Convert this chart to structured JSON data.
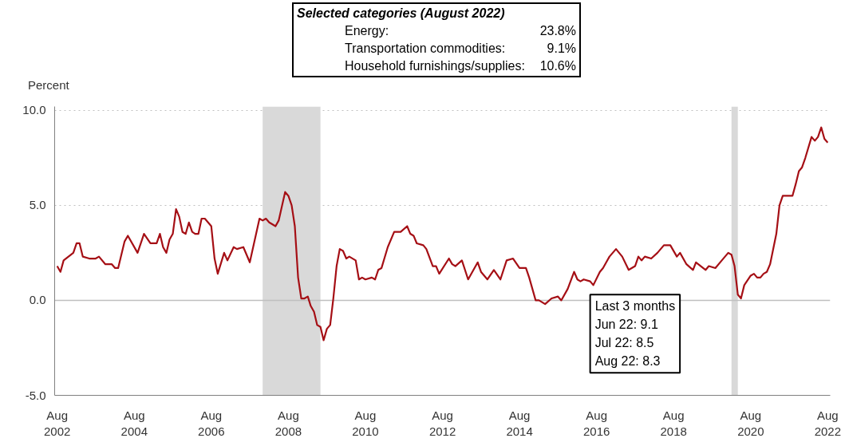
{
  "chart_data": {
    "type": "line",
    "ylabel": "Percent",
    "x": [
      "2002-08",
      "2002-09",
      "2002-10",
      "2003-01",
      "2003-02",
      "2003-03",
      "2003-04",
      "2003-06",
      "2003-08",
      "2003-09",
      "2003-11",
      "2004-01",
      "2004-02",
      "2004-03",
      "2004-05",
      "2004-06",
      "2004-09",
      "2004-11",
      "2005-01",
      "2005-03",
      "2005-04",
      "2005-05",
      "2005-06",
      "2005-07",
      "2005-08",
      "2005-09",
      "2005-10",
      "2005-11",
      "2005-12",
      "2006-01",
      "2006-02",
      "2006-03",
      "2006-04",
      "2006-05",
      "2006-06",
      "2006-08",
      "2006-09",
      "2006-10",
      "2006-12",
      "2007-01",
      "2007-03",
      "2007-04",
      "2007-06",
      "2007-08",
      "2007-11",
      "2007-12",
      "2008-01",
      "2008-02",
      "2008-04",
      "2008-05",
      "2008-07",
      "2008-08",
      "2008-09",
      "2008-10",
      "2008-11",
      "2008-12",
      "2009-01",
      "2009-02",
      "2009-03",
      "2009-04",
      "2009-05",
      "2009-06",
      "2009-07",
      "2009-08",
      "2009-09",
      "2009-10",
      "2009-11",
      "2009-12",
      "2010-01",
      "2010-02",
      "2010-03",
      "2010-05",
      "2010-06",
      "2010-07",
      "2010-08",
      "2010-10",
      "2010-11",
      "2010-12",
      "2011-01",
      "2011-03",
      "2011-05",
      "2011-07",
      "2011-09",
      "2011-10",
      "2011-11",
      "2011-12",
      "2012-02",
      "2012-03",
      "2012-05",
      "2012-06",
      "2012-07",
      "2012-10",
      "2012-11",
      "2012-12",
      "2013-02",
      "2013-04",
      "2013-07",
      "2013-08",
      "2013-10",
      "2013-12",
      "2014-02",
      "2014-04",
      "2014-06",
      "2014-08",
      "2014-10",
      "2014-11",
      "2015-01",
      "2015-02",
      "2015-04",
      "2015-06",
      "2015-08",
      "2015-09",
      "2015-11",
      "2016-01",
      "2016-02",
      "2016-03",
      "2016-04",
      "2016-06",
      "2016-07",
      "2016-09",
      "2016-10",
      "2016-12",
      "2017-02",
      "2017-04",
      "2017-06",
      "2017-08",
      "2017-09",
      "2017-10",
      "2017-11",
      "2018-01",
      "2018-03",
      "2018-05",
      "2018-07",
      "2018-09",
      "2018-10",
      "2018-12",
      "2019-02",
      "2019-03",
      "2019-06",
      "2019-07",
      "2019-09",
      "2019-11",
      "2020-01",
      "2020-02",
      "2020-03",
      "2020-04",
      "2020-05",
      "2020-06",
      "2020-08",
      "2020-09",
      "2020-10",
      "2020-11",
      "2020-12",
      "2021-01",
      "2021-02",
      "2021-04",
      "2021-05",
      "2021-06",
      "2021-08",
      "2021-09",
      "2021-10",
      "2021-11",
      "2021-12",
      "2022-01",
      "2022-03",
      "2022-04",
      "2022-05",
      "2022-06",
      "2022-07",
      "2022-08"
    ],
    "series": [
      {
        "color": "#a50f15",
        "values": [
          1.8,
          1.5,
          2.1,
          2.5,
          3.0,
          3.0,
          2.3,
          2.2,
          2.2,
          2.3,
          1.9,
          1.9,
          1.7,
          1.7,
          3.1,
          3.4,
          2.5,
          3.5,
          3.0,
          3.0,
          3.5,
          2.8,
          2.5,
          3.2,
          3.5,
          4.8,
          4.4,
          3.6,
          3.5,
          4.1,
          3.6,
          3.5,
          3.5,
          4.3,
          4.3,
          3.9,
          2.2,
          1.4,
          2.5,
          2.1,
          2.8,
          2.7,
          2.8,
          2.0,
          4.3,
          4.2,
          4.3,
          4.1,
          3.9,
          4.2,
          5.7,
          5.5,
          5.0,
          3.9,
          1.2,
          0.1,
          0.1,
          0.2,
          -0.3,
          -0.6,
          -1.3,
          -1.4,
          -2.1,
          -1.5,
          -1.3,
          0.1,
          1.8,
          2.7,
          2.6,
          2.2,
          2.3,
          2.1,
          1.1,
          1.2,
          1.1,
          1.2,
          1.1,
          1.6,
          1.7,
          2.8,
          3.6,
          3.6,
          3.9,
          3.5,
          3.4,
          3.0,
          2.9,
          2.7,
          1.8,
          1.8,
          1.4,
          2.2,
          1.9,
          1.8,
          2.1,
          1.1,
          2.0,
          1.5,
          1.1,
          1.6,
          1.1,
          2.1,
          2.2,
          1.7,
          1.7,
          1.2,
          0.0,
          0.0,
          -0.2,
          0.1,
          0.2,
          0.0,
          0.6,
          1.5,
          1.1,
          1.0,
          1.1,
          1.0,
          0.8,
          1.5,
          1.7,
          2.3,
          2.7,
          2.3,
          1.6,
          1.8,
          2.3,
          2.1,
          2.3,
          2.2,
          2.5,
          2.9,
          2.9,
          2.3,
          2.5,
          1.9,
          1.6,
          2.0,
          1.6,
          1.8,
          1.7,
          2.1,
          2.5,
          2.4,
          1.8,
          0.3,
          0.1,
          0.8,
          1.3,
          1.4,
          1.2,
          1.2,
          1.4,
          1.5,
          1.9,
          3.5,
          5.0,
          5.5,
          5.5,
          5.5,
          6.1,
          6.8,
          7.0,
          7.5,
          8.6,
          8.4,
          8.6,
          9.1,
          8.5,
          8.3
        ]
      }
    ],
    "xlim": [
      "2002-07-08",
      "2022-08-25"
    ],
    "ylim": [
      -5,
      10.2
    ],
    "xticks": [
      {
        "value": "2002-08",
        "label": "Aug\n2002"
      },
      {
        "value": "2004-08",
        "label": "Aug\n2004"
      },
      {
        "value": "2006-08",
        "label": "Aug\n2006"
      },
      {
        "value": "2008-08",
        "label": "Aug\n2008"
      },
      {
        "value": "2010-08",
        "label": "Aug\n2010"
      },
      {
        "value": "2012-08",
        "label": "Aug\n2012"
      },
      {
        "value": "2014-08",
        "label": "Aug\n2014"
      },
      {
        "value": "2016-08",
        "label": "Aug\n2016"
      },
      {
        "value": "2018-08",
        "label": "Aug\n2018"
      },
      {
        "value": "2020-08",
        "label": "Aug\n2020"
      },
      {
        "value": "2022-08",
        "label": "Aug\n2022"
      }
    ],
    "yticks": [
      {
        "value": -5,
        "label": "-5.0"
      },
      {
        "value": 0,
        "label": "0.0"
      },
      {
        "value": 5,
        "label": "5.0"
      },
      {
        "value": 10,
        "label": "10.0"
      }
    ],
    "grid": "y",
    "bands": [
      {
        "axis": "x",
        "from": "2007-12",
        "to": "2009-06",
        "color": "#d9d9d9"
      },
      {
        "axis": "x",
        "from": "2020-02",
        "to": "2020-04",
        "color": "#d9d9d9"
      }
    ],
    "ref_lines": [
      {
        "axis": "y",
        "value": 0,
        "color": "#bfbfbf"
      }
    ],
    "annotations": [
      "Selected categories (August 2022)",
      "Energy:\t23.8%",
      "Transportation commodities:\t9.1%",
      "Household furnishings/supplies:\t10.6%",
      "Last 3 months",
      "Jun 22: 9.1",
      "Jul 22: 8.5",
      "Aug 22: 8.3"
    ]
  }
}
